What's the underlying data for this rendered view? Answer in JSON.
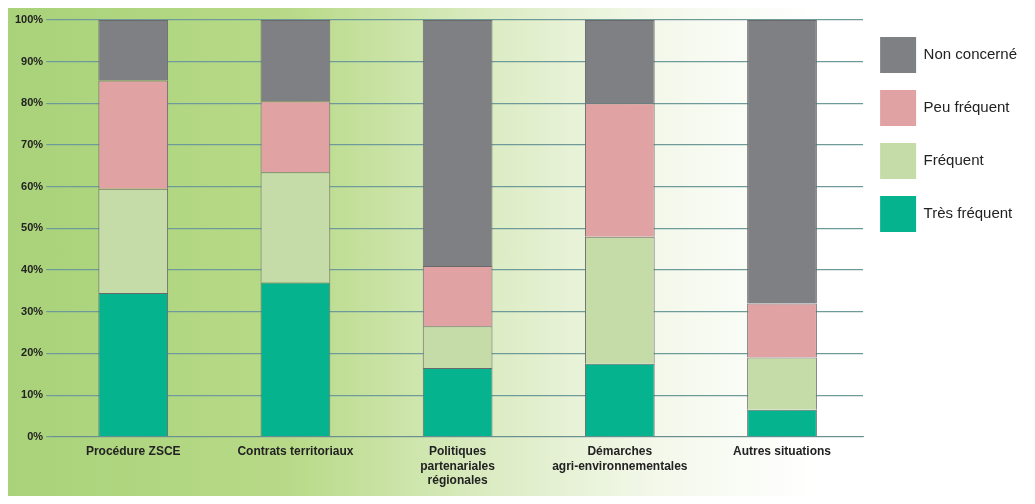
{
  "chart_data": {
    "type": "bar",
    "stacked": true,
    "categories": [
      "Procédure ZSCE",
      "Contrats territoriaux",
      "Politiques partenariales régionales",
      "Démarches agri-environnementales",
      "Autres situations"
    ],
    "series": [
      {
        "name": "Très fréquent",
        "color": "#05b48f",
        "values": [
          34.5,
          37,
          16.5,
          17.5,
          6.5
        ]
      },
      {
        "name": "Fréquent",
        "color": "#c5dba8",
        "values": [
          25,
          26.5,
          10,
          30.5,
          12.5
        ]
      },
      {
        "name": "Peu fréquent",
        "color": "#e0a2a2",
        "values": [
          26,
          17,
          14.5,
          32,
          13
        ]
      },
      {
        "name": "Non concerné",
        "color": "#7f8083",
        "values": [
          14.5,
          19.5,
          59,
          20,
          68
        ]
      }
    ],
    "ylim": [
      0,
      100
    ],
    "yticks": [
      {
        "value": 0,
        "label": "0%"
      },
      {
        "value": 10,
        "label": "10%"
      },
      {
        "value": 20,
        "label": "20%"
      },
      {
        "value": 30,
        "label": "30%"
      },
      {
        "value": 40,
        "label": "40%"
      },
      {
        "value": 50,
        "label": "50%"
      },
      {
        "value": 60,
        "label": "60%"
      },
      {
        "value": 70,
        "label": "70%"
      },
      {
        "value": 80,
        "label": "80%"
      },
      {
        "value": 90,
        "label": "90%"
      },
      {
        "value": 100,
        "label": "100%"
      }
    ],
    "grid": "y",
    "legend": "right"
  }
}
